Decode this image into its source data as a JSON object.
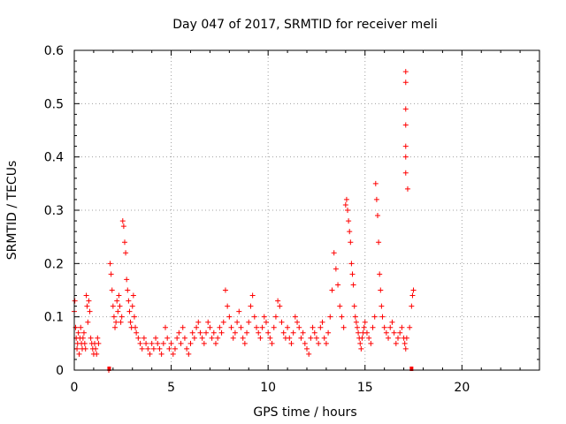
{
  "chart_data": {
    "type": "scatter",
    "title": "Day 047 of 2017, SRMTID for receiver meli",
    "xlabel": "GPS time / hours",
    "ylabel": "SRMTID / TECUs",
    "xlim": [
      0,
      24
    ],
    "ylim": [
      0,
      0.6
    ],
    "xticks": [
      0,
      5,
      10,
      15,
      20
    ],
    "yticks": [
      0,
      0.1,
      0.2,
      0.3,
      0.4,
      0.5,
      0.6
    ],
    "xtick_labels": [
      "0",
      "5",
      "10",
      "15",
      "20"
    ],
    "ytick_labels": [
      "0",
      "0.1",
      "0.2",
      "0.3",
      "0.4",
      "0.5",
      "0.6"
    ],
    "grid": true,
    "marker": "+",
    "color": "#ff0000",
    "series": [
      {
        "name": "SRMTID",
        "x": [
          0.0,
          0.03,
          0.07,
          0.1,
          0.14,
          0.17,
          0.21,
          0.25,
          0.29,
          0.33,
          0.37,
          0.41,
          0.45,
          0.5,
          0.54,
          0.58,
          0.62,
          0.66,
          0.7,
          0.75,
          0.8,
          0.85,
          0.9,
          0.95,
          1.0,
          1.05,
          1.1,
          1.15,
          1.2,
          1.25,
          1.78,
          1.85,
          1.9,
          1.95,
          2.0,
          2.05,
          2.1,
          2.15,
          2.2,
          2.25,
          2.3,
          2.35,
          2.4,
          2.45,
          2.5,
          2.55,
          2.6,
          2.65,
          2.7,
          2.75,
          2.8,
          2.85,
          2.9,
          2.95,
          3.0,
          3.05,
          3.1,
          3.15,
          3.2,
          3.3,
          3.4,
          3.5,
          3.6,
          3.7,
          3.8,
          3.9,
          4.0,
          4.1,
          4.2,
          4.3,
          4.4,
          4.5,
          4.6,
          4.7,
          4.8,
          4.9,
          5.0,
          5.1,
          5.2,
          5.3,
          5.4,
          5.5,
          5.6,
          5.7,
          5.8,
          5.9,
          6.0,
          6.1,
          6.2,
          6.3,
          6.4,
          6.5,
          6.6,
          6.7,
          6.8,
          6.9,
          7.0,
          7.1,
          7.2,
          7.3,
          7.4,
          7.5,
          7.6,
          7.7,
          7.8,
          7.9,
          8.0,
          8.1,
          8.2,
          8.3,
          8.4,
          8.5,
          8.6,
          8.7,
          8.8,
          8.9,
          9.0,
          9.1,
          9.2,
          9.3,
          9.4,
          9.5,
          9.6,
          9.7,
          9.8,
          9.9,
          10.0,
          10.1,
          10.2,
          10.3,
          10.4,
          10.5,
          10.6,
          10.7,
          10.8,
          10.9,
          11.0,
          11.1,
          11.2,
          11.3,
          11.4,
          11.5,
          11.6,
          11.7,
          11.8,
          11.9,
          12.0,
          12.1,
          12.2,
          12.3,
          12.4,
          12.5,
          12.6,
          12.7,
          12.8,
          12.9,
          13.0,
          13.1,
          13.2,
          13.3,
          13.4,
          13.5,
          13.6,
          13.7,
          13.8,
          13.9,
          14.0,
          14.05,
          14.1,
          14.15,
          14.2,
          14.25,
          14.3,
          14.35,
          14.4,
          14.45,
          14.5,
          14.55,
          14.6,
          14.65,
          14.7,
          14.75,
          14.8,
          14.85,
          14.9,
          14.95,
          15.0,
          15.1,
          15.2,
          15.3,
          15.4,
          15.5,
          15.55,
          15.6,
          15.65,
          15.7,
          15.75,
          15.8,
          15.85,
          15.9,
          16.0,
          16.1,
          16.2,
          16.3,
          16.4,
          16.5,
          16.6,
          16.7,
          16.8,
          16.9,
          17.0,
          17.05,
          17.1,
          17.15,
          17.1,
          17.1,
          17.1,
          17.1,
          17.1,
          17.1,
          17.1,
          17.2,
          17.3,
          17.4,
          17.45,
          17.5
        ],
        "y": [
          0.11,
          0.13,
          0.08,
          0.06,
          0.04,
          0.05,
          0.07,
          0.03,
          0.06,
          0.08,
          0.05,
          0.04,
          0.06,
          0.07,
          0.05,
          0.04,
          0.14,
          0.12,
          0.09,
          0.13,
          0.11,
          0.06,
          0.05,
          0.04,
          0.03,
          0.05,
          0.04,
          0.03,
          0.06,
          0.05,
          0.0,
          0.2,
          0.18,
          0.15,
          0.12,
          0.1,
          0.08,
          0.09,
          0.13,
          0.11,
          0.14,
          0.12,
          0.09,
          0.1,
          0.28,
          0.27,
          0.24,
          0.22,
          0.17,
          0.15,
          0.13,
          0.11,
          0.09,
          0.08,
          0.12,
          0.14,
          0.1,
          0.08,
          0.07,
          0.06,
          0.05,
          0.04,
          0.06,
          0.05,
          0.04,
          0.03,
          0.05,
          0.04,
          0.06,
          0.05,
          0.04,
          0.03,
          0.05,
          0.08,
          0.06,
          0.04,
          0.05,
          0.03,
          0.04,
          0.06,
          0.07,
          0.05,
          0.08,
          0.06,
          0.04,
          0.03,
          0.05,
          0.07,
          0.06,
          0.08,
          0.09,
          0.07,
          0.06,
          0.05,
          0.07,
          0.09,
          0.08,
          0.06,
          0.07,
          0.05,
          0.06,
          0.08,
          0.07,
          0.09,
          0.15,
          0.12,
          0.1,
          0.08,
          0.06,
          0.07,
          0.09,
          0.11,
          0.08,
          0.06,
          0.05,
          0.07,
          0.09,
          0.12,
          0.14,
          0.1,
          0.08,
          0.07,
          0.06,
          0.08,
          0.1,
          0.09,
          0.07,
          0.06,
          0.05,
          0.08,
          0.1,
          0.13,
          0.12,
          0.09,
          0.07,
          0.06,
          0.08,
          0.06,
          0.05,
          0.07,
          0.1,
          0.09,
          0.08,
          0.06,
          0.07,
          0.05,
          0.04,
          0.03,
          0.06,
          0.08,
          0.07,
          0.06,
          0.05,
          0.08,
          0.09,
          0.06,
          0.05,
          0.07,
          0.1,
          0.15,
          0.22,
          0.19,
          0.16,
          0.12,
          0.1,
          0.08,
          0.31,
          0.32,
          0.3,
          0.28,
          0.26,
          0.24,
          0.2,
          0.18,
          0.16,
          0.12,
          0.1,
          0.09,
          0.08,
          0.07,
          0.06,
          0.05,
          0.04,
          0.06,
          0.07,
          0.08,
          0.09,
          0.07,
          0.06,
          0.05,
          0.08,
          0.1,
          0.35,
          0.32,
          0.29,
          0.24,
          0.18,
          0.15,
          0.12,
          0.1,
          0.08,
          0.07,
          0.06,
          0.08,
          0.09,
          0.07,
          0.05,
          0.06,
          0.07,
          0.08,
          0.06,
          0.05,
          0.04,
          0.06,
          0.56,
          0.54,
          0.49,
          0.46,
          0.42,
          0.4,
          0.37,
          0.34,
          0.08,
          0.12,
          0.14,
          0.15
        ]
      }
    ],
    "extra_markers_at_zero": [
      1.8,
      17.4
    ]
  }
}
